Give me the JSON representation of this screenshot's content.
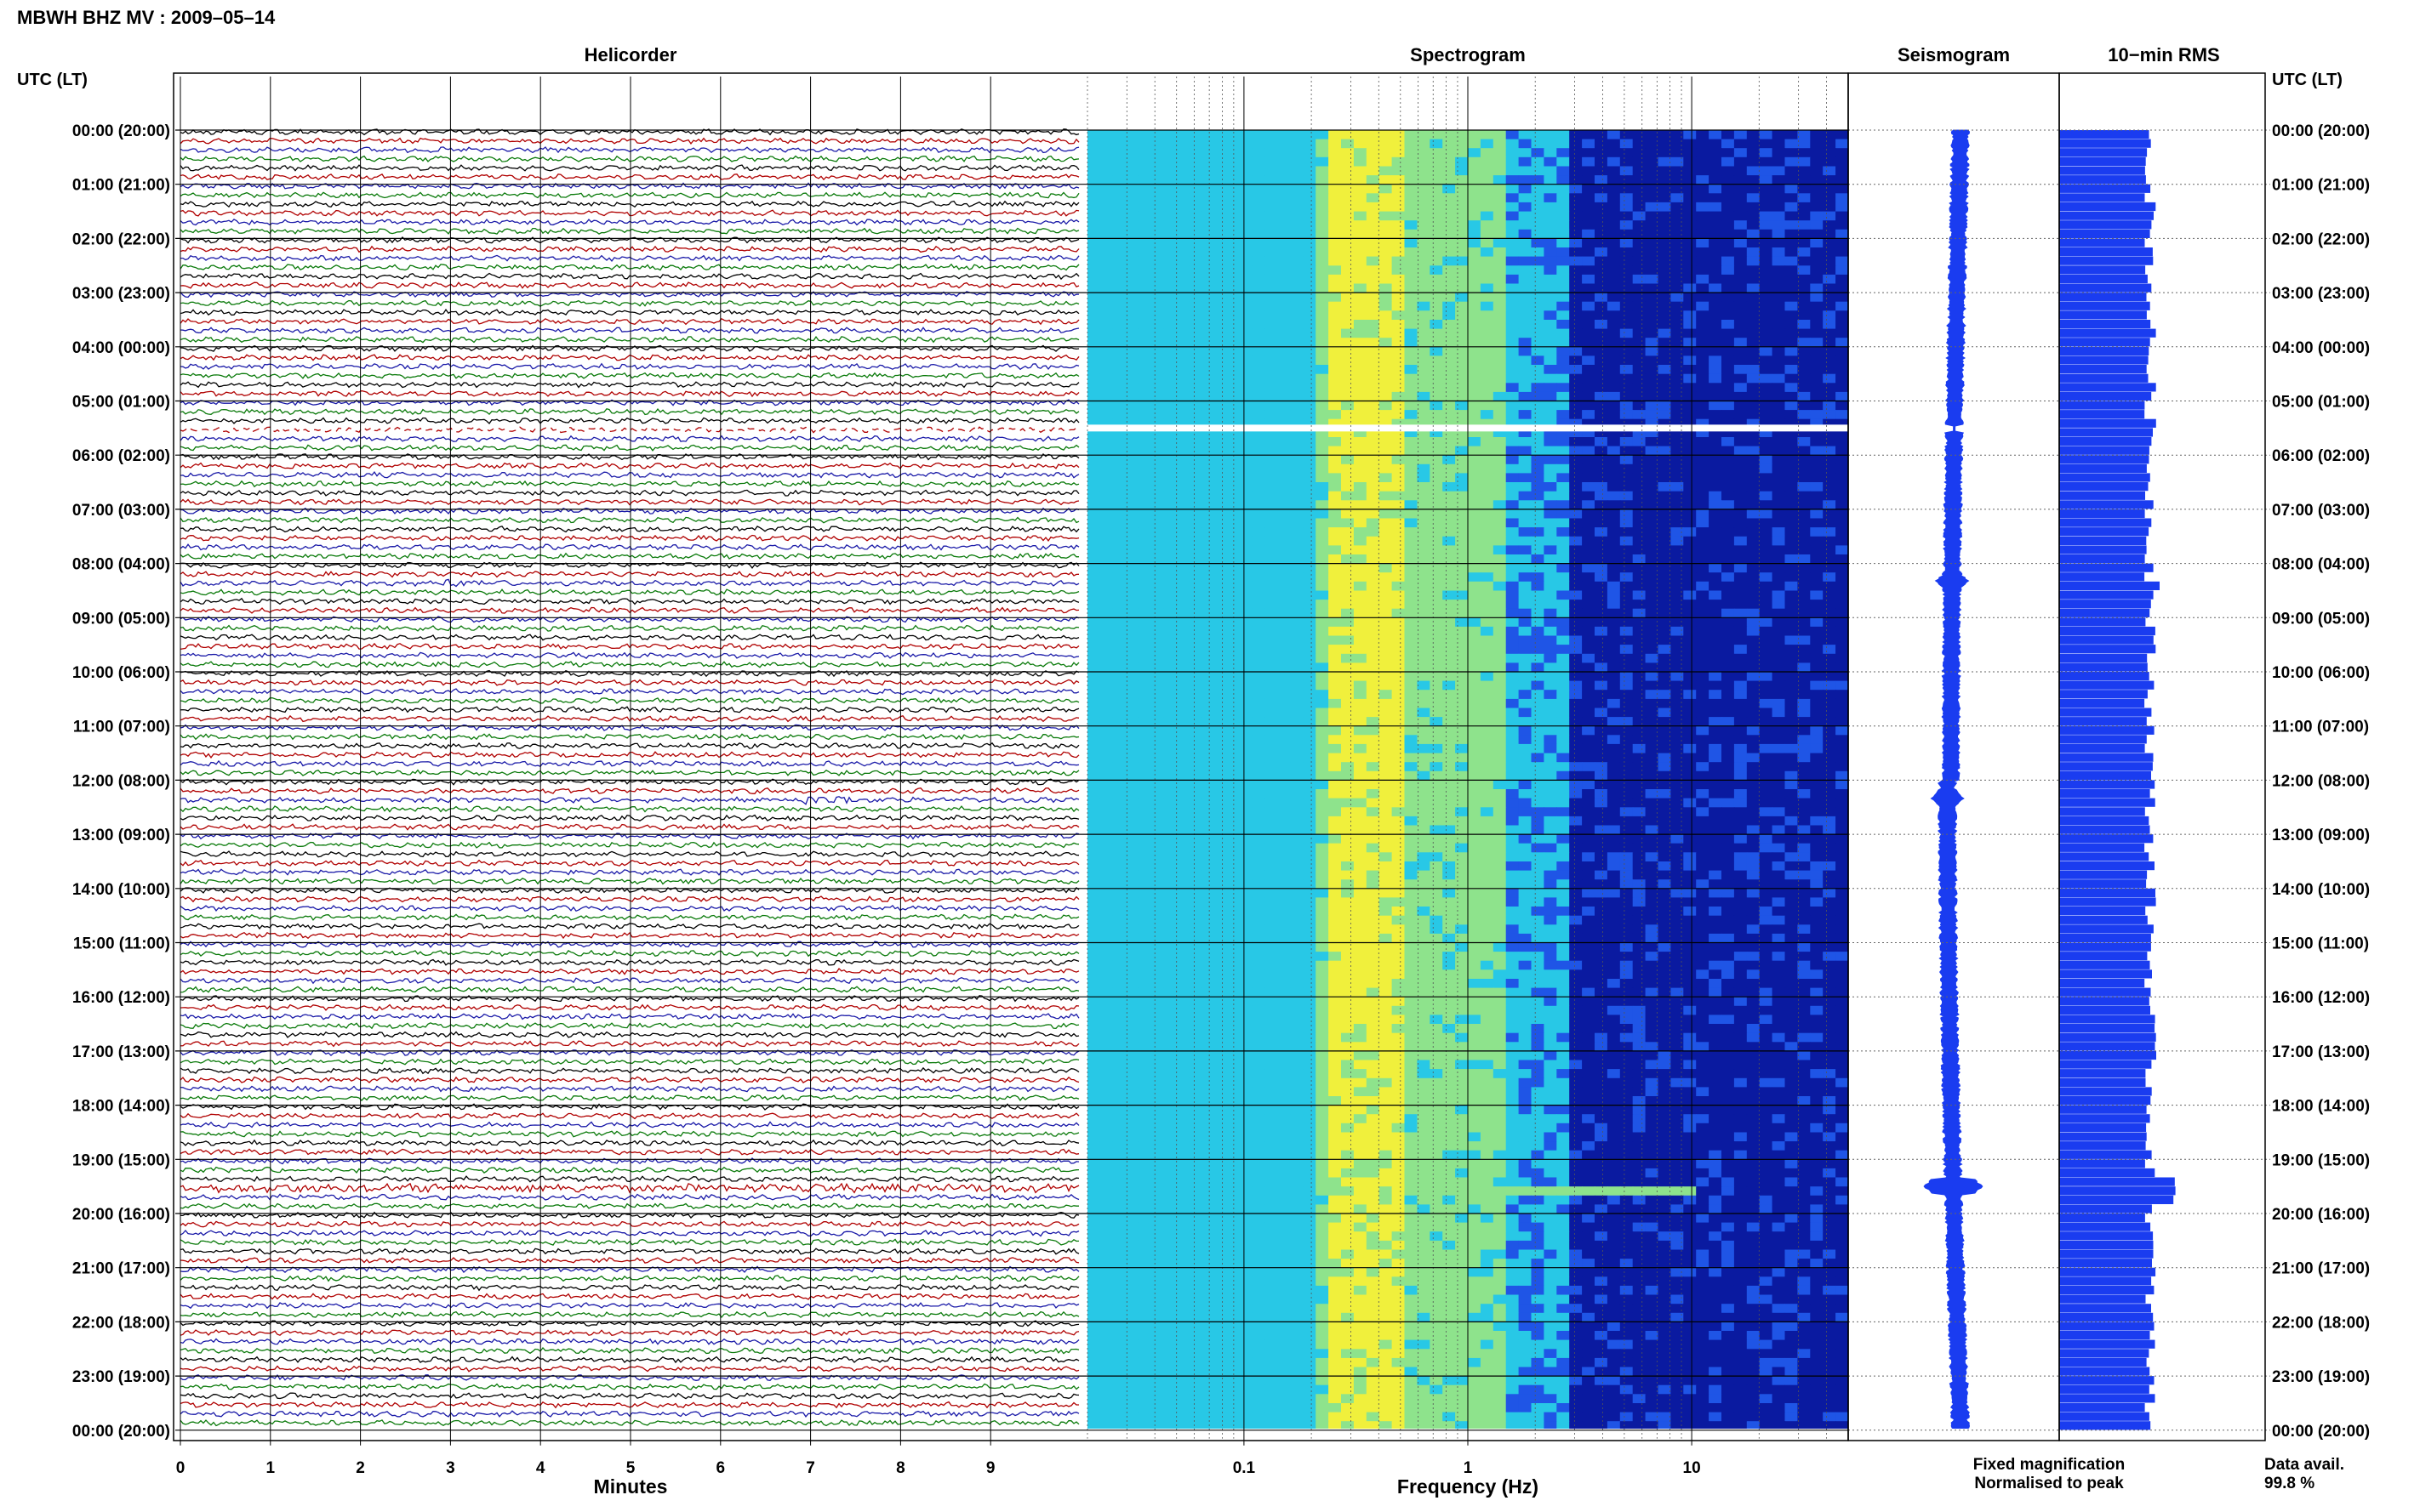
{
  "header": {
    "title": "MBWH BHZ MV : 2009–05–14",
    "time_axis_label": "UTC (LT)"
  },
  "panels": {
    "helicorder": "Helicorder",
    "spectrogram": "Spectrogram",
    "seismogram": "Seismogram",
    "rms": "10−min RMS"
  },
  "colors": {
    "trace_cycle": [
      "#000000",
      "#b00000",
      "#1a1aa8",
      "#0a7a0a"
    ],
    "spectrogram_scale": [
      "#0a1aa0",
      "#1f55e6",
      "#28c8e6",
      "#8ee38c",
      "#f0f03c"
    ],
    "seismogram": "#1a3cf0",
    "rms": "#1a3cf0",
    "legend_fixed": "#1a1af0",
    "legend_normalised": "#e01010",
    "gap": "#ffffff"
  },
  "footer": {
    "legend_fixed": "Fixed magnification",
    "legend_normalised": "Normalised to peak",
    "data_avail_label": "Data avail.",
    "data_avail_value": "99.8 %"
  },
  "chart_data": [
    {
      "type": "line",
      "title": "Helicorder",
      "xlabel": "Minutes",
      "ylabel": "UTC (LT)",
      "xlim": [
        0,
        10
      ],
      "x_ticks": [
        "0",
        "1",
        "2",
        "3",
        "4",
        "5",
        "6",
        "7",
        "8",
        "9"
      ],
      "hour_labels": [
        "00:00 (20:00)",
        "01:00 (21:00)",
        "02:00 (22:00)",
        "03:00 (23:00)",
        "04:00 (00:00)",
        "05:00 (01:00)",
        "06:00 (02:00)",
        "07:00 (03:00)",
        "08:00 (04:00)",
        "09:00 (05:00)",
        "10:00 (06:00)",
        "11:00 (07:00)",
        "12:00 (08:00)",
        "13:00 (09:00)",
        "14:00 (10:00)",
        "15:00 (11:00)",
        "16:00 (12:00)",
        "17:00 (13:00)",
        "18:00 (14:00)",
        "19:00 (15:00)",
        "20:00 (16:00)",
        "21:00 (17:00)",
        "22:00 (18:00)",
        "23:00 (19:00)",
        "00:00 (20:00)"
      ],
      "traces_per_hour": 6,
      "total_traces": 144,
      "events": [
        {
          "time_utc": "08:20",
          "minute_start": 2.9,
          "minute_end": 3.6
        },
        {
          "time_utc": "12:20",
          "minute_start": 6.9,
          "minute_end": 8.1
        },
        {
          "time_utc": "19:30",
          "minute_start": 0.0,
          "minute_end": 10.0
        }
      ],
      "data_gap_utc": "05:30"
    },
    {
      "type": "heatmap",
      "title": "Spectrogram",
      "xlabel": "Frequency (Hz)",
      "x_scale": "log",
      "xlim": [
        0.02,
        50
      ],
      "x_ticks": [
        "0.1",
        "1",
        "10"
      ],
      "peak_band_hz": [
        0.25,
        0.5
      ],
      "data_gap_utc": "05:30"
    },
    {
      "type": "line",
      "title": "Seismogram",
      "events_utc": [
        "08:20",
        "12:20",
        "19:30"
      ]
    },
    {
      "type": "bar",
      "title": "10−min RMS",
      "bins_per_hour": 6,
      "peak_utc": "19:30"
    }
  ]
}
